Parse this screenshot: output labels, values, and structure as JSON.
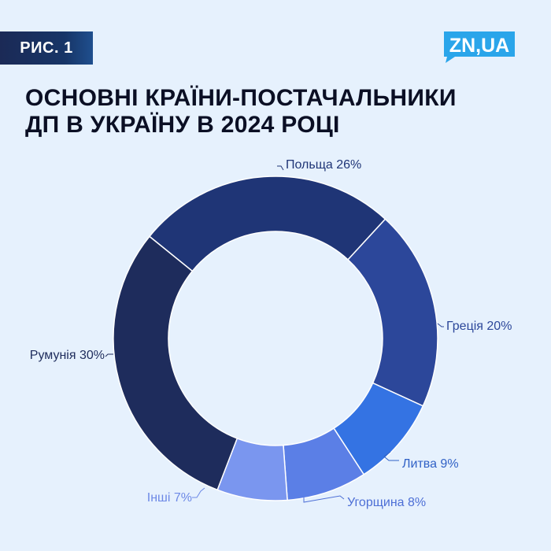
{
  "badge": {
    "label": "РИС. 1"
  },
  "logo": {
    "text": "ZN,UA"
  },
  "colors": {
    "background": "#e6f1fd",
    "badge": "#1b2a56",
    "logo": "#2aa5ea",
    "title": "#0b0f24"
  },
  "chart_data": {
    "type": "donut",
    "title_lines": [
      "ОСНОВНІ КРАЇНИ-ПОСТАЧАЛЬНИКИ",
      "ДП В УКРАЇНУ В 2024 РОЦІ"
    ],
    "unit": "%",
    "slices": [
      {
        "name": "Польща",
        "value": 26,
        "label": "Польща 26%",
        "color": "#1f3576",
        "label_color": "#1f3576"
      },
      {
        "name": "Греція",
        "value": 20,
        "label": "Греція 20%",
        "color": "#2c479a",
        "label_color": "#2c479a"
      },
      {
        "name": "Литва",
        "value": 9,
        "label": "Литва 9%",
        "color": "#3473e3",
        "label_color": "#3061c6"
      },
      {
        "name": "Угорщина",
        "value": 8,
        "label": "Угорщина 8%",
        "color": "#5b7fe6",
        "label_color": "#4d6fd6"
      },
      {
        "name": "Інші",
        "value": 7,
        "label": "Інші 7%",
        "color": "#7a96ef",
        "label_color": "#6d89e6"
      },
      {
        "name": "Румунія",
        "value": 30,
        "label": "Румунія 30%",
        "color": "#1e2c5c",
        "label_color": "#1e2c5c"
      }
    ]
  }
}
